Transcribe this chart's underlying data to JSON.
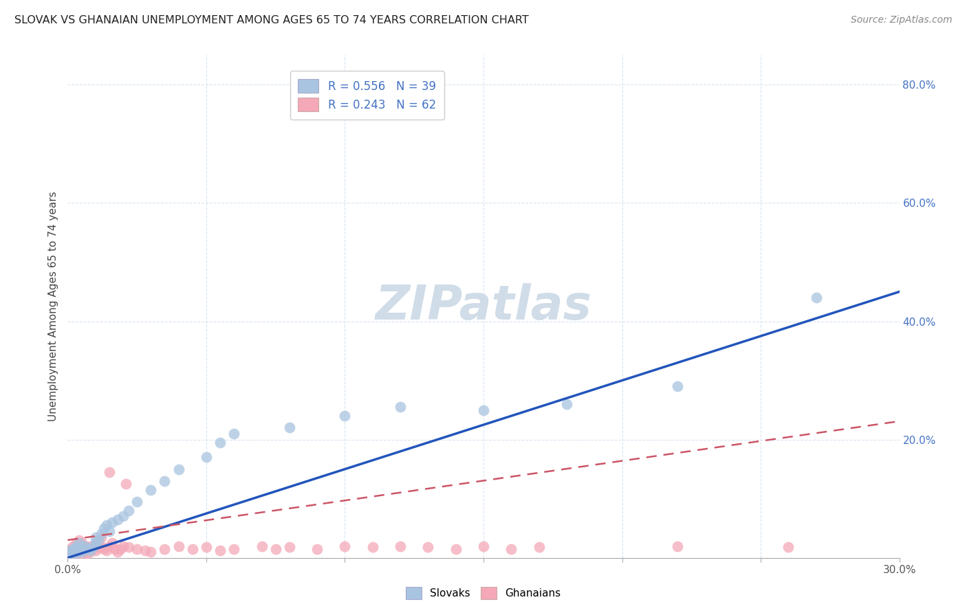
{
  "title": "SLOVAK VS GHANAIAN UNEMPLOYMENT AMONG AGES 65 TO 74 YEARS CORRELATION CHART",
  "source": "Source: ZipAtlas.com",
  "ylabel": "Unemployment Among Ages 65 to 74 years",
  "xlim": [
    0.0,
    0.3
  ],
  "ylim": [
    0.0,
    0.85
  ],
  "background_color": "#ffffff",
  "grid_color": "#d8e4f0",
  "blue_scatter_color": "#a8c4e0",
  "pink_scatter_color": "#f4a8b8",
  "blue_line_color": "#2255bb",
  "pink_line_color": "#cc5566",
  "watermark_color": "#d0dce8",
  "legend_text_color": "#4472c4",
  "right_tick_color": "#4472c4",
  "slovaks_x": [
    0.001,
    0.001,
    0.002,
    0.002,
    0.003,
    0.003,
    0.004,
    0.004,
    0.005,
    0.005,
    0.006,
    0.007,
    0.008,
    0.009,
    0.01,
    0.01,
    0.011,
    0.012,
    0.013,
    0.014,
    0.015,
    0.016,
    0.018,
    0.02,
    0.022,
    0.025,
    0.03,
    0.035,
    0.04,
    0.05,
    0.055,
    0.06,
    0.08,
    0.1,
    0.12,
    0.15,
    0.18,
    0.22,
    0.27
  ],
  "slovaks_y": [
    0.008,
    0.012,
    0.01,
    0.015,
    0.008,
    0.02,
    0.015,
    0.025,
    0.01,
    0.018,
    0.02,
    0.015,
    0.012,
    0.018,
    0.025,
    0.035,
    0.03,
    0.04,
    0.05,
    0.055,
    0.045,
    0.06,
    0.065,
    0.07,
    0.08,
    0.095,
    0.115,
    0.13,
    0.15,
    0.17,
    0.195,
    0.21,
    0.22,
    0.24,
    0.255,
    0.25,
    0.26,
    0.29,
    0.44
  ],
  "ghanaians_x": [
    0.0,
    0.001,
    0.001,
    0.001,
    0.002,
    0.002,
    0.002,
    0.003,
    0.003,
    0.003,
    0.004,
    0.004,
    0.004,
    0.005,
    0.005,
    0.005,
    0.006,
    0.006,
    0.007,
    0.007,
    0.008,
    0.008,
    0.009,
    0.01,
    0.01,
    0.011,
    0.012,
    0.012,
    0.013,
    0.014,
    0.015,
    0.015,
    0.016,
    0.017,
    0.018,
    0.019,
    0.02,
    0.021,
    0.022,
    0.025,
    0.028,
    0.03,
    0.035,
    0.04,
    0.045,
    0.05,
    0.055,
    0.06,
    0.07,
    0.075,
    0.08,
    0.09,
    0.1,
    0.11,
    0.12,
    0.13,
    0.14,
    0.15,
    0.16,
    0.17,
    0.22,
    0.26
  ],
  "ghanaians_y": [
    0.005,
    0.008,
    0.01,
    0.015,
    0.005,
    0.012,
    0.02,
    0.008,
    0.015,
    0.025,
    0.01,
    0.018,
    0.03,
    0.008,
    0.015,
    0.025,
    0.01,
    0.02,
    0.008,
    0.018,
    0.01,
    0.02,
    0.015,
    0.012,
    0.025,
    0.018,
    0.02,
    0.035,
    0.015,
    0.012,
    0.145,
    0.02,
    0.025,
    0.015,
    0.01,
    0.015,
    0.02,
    0.125,
    0.018,
    0.015,
    0.012,
    0.01,
    0.015,
    0.02,
    0.015,
    0.018,
    0.012,
    0.015,
    0.02,
    0.015,
    0.018,
    0.015,
    0.02,
    0.018,
    0.02,
    0.018,
    0.015,
    0.02,
    0.015,
    0.018,
    0.02,
    0.018
  ],
  "blue_line_intercept": 0.0,
  "blue_line_slope": 1.5,
  "pink_line_intercept": 0.03,
  "pink_line_slope": 0.67
}
